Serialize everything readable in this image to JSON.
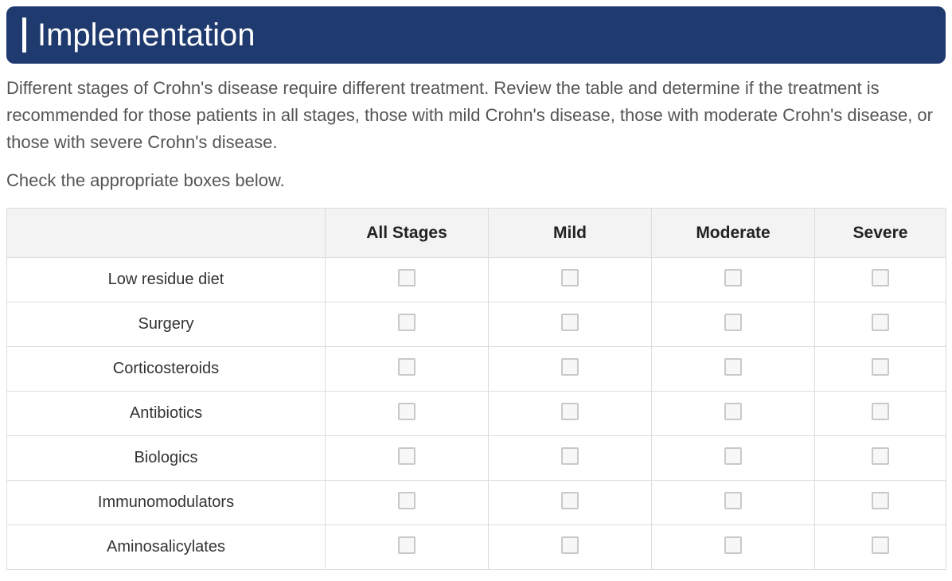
{
  "header": {
    "title": "Implementation"
  },
  "intro": "Different stages of Crohn's disease require different treatment. Review the table and determine if the treatment is recommended for those patients in all stages, those with mild Crohn's disease, those with moderate Crohn's disease, or those with severe Crohn's disease.",
  "subintro": "Check the appropriate boxes below.",
  "table": {
    "columns": [
      "All Stages",
      "Mild",
      "Moderate",
      "Severe"
    ],
    "rows": [
      "Low residue diet",
      "Surgery",
      "Corticosteroids",
      "Antibiotics",
      "Biologics",
      "Immunomodulators",
      "Aminosalicylates"
    ]
  }
}
